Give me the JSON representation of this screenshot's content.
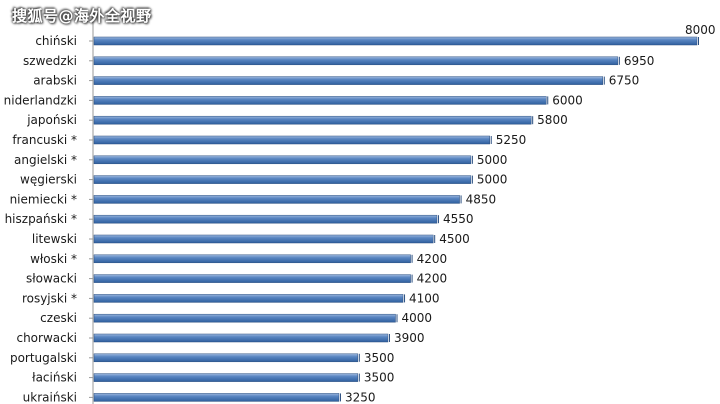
{
  "watermark": "搜狐号@海外全视野",
  "chart_data": {
    "type": "bar",
    "orientation": "horizontal",
    "title": "",
    "xlabel": "",
    "ylabel": "",
    "xlim": [
      0,
      8000
    ],
    "categories": [
      "chiński",
      "szwedzki",
      "arabski",
      "niderlandzki",
      "japoński",
      "francuski *",
      "angielski *",
      "węgierski",
      "niemiecki *",
      "hiszpański *",
      "litewski",
      "włoski *",
      "słowacki",
      "rosyjski *",
      "czeski",
      "chorwacki",
      "portugalski",
      "łaciński",
      "ukraiński"
    ],
    "values": [
      8000,
      6950,
      6750,
      6000,
      5800,
      5250,
      5000,
      5000,
      4850,
      4550,
      4500,
      4200,
      4200,
      4100,
      4000,
      3900,
      3500,
      3500,
      3250
    ],
    "bar_color": "#4f81bd",
    "grid": false,
    "data_labels": true
  }
}
